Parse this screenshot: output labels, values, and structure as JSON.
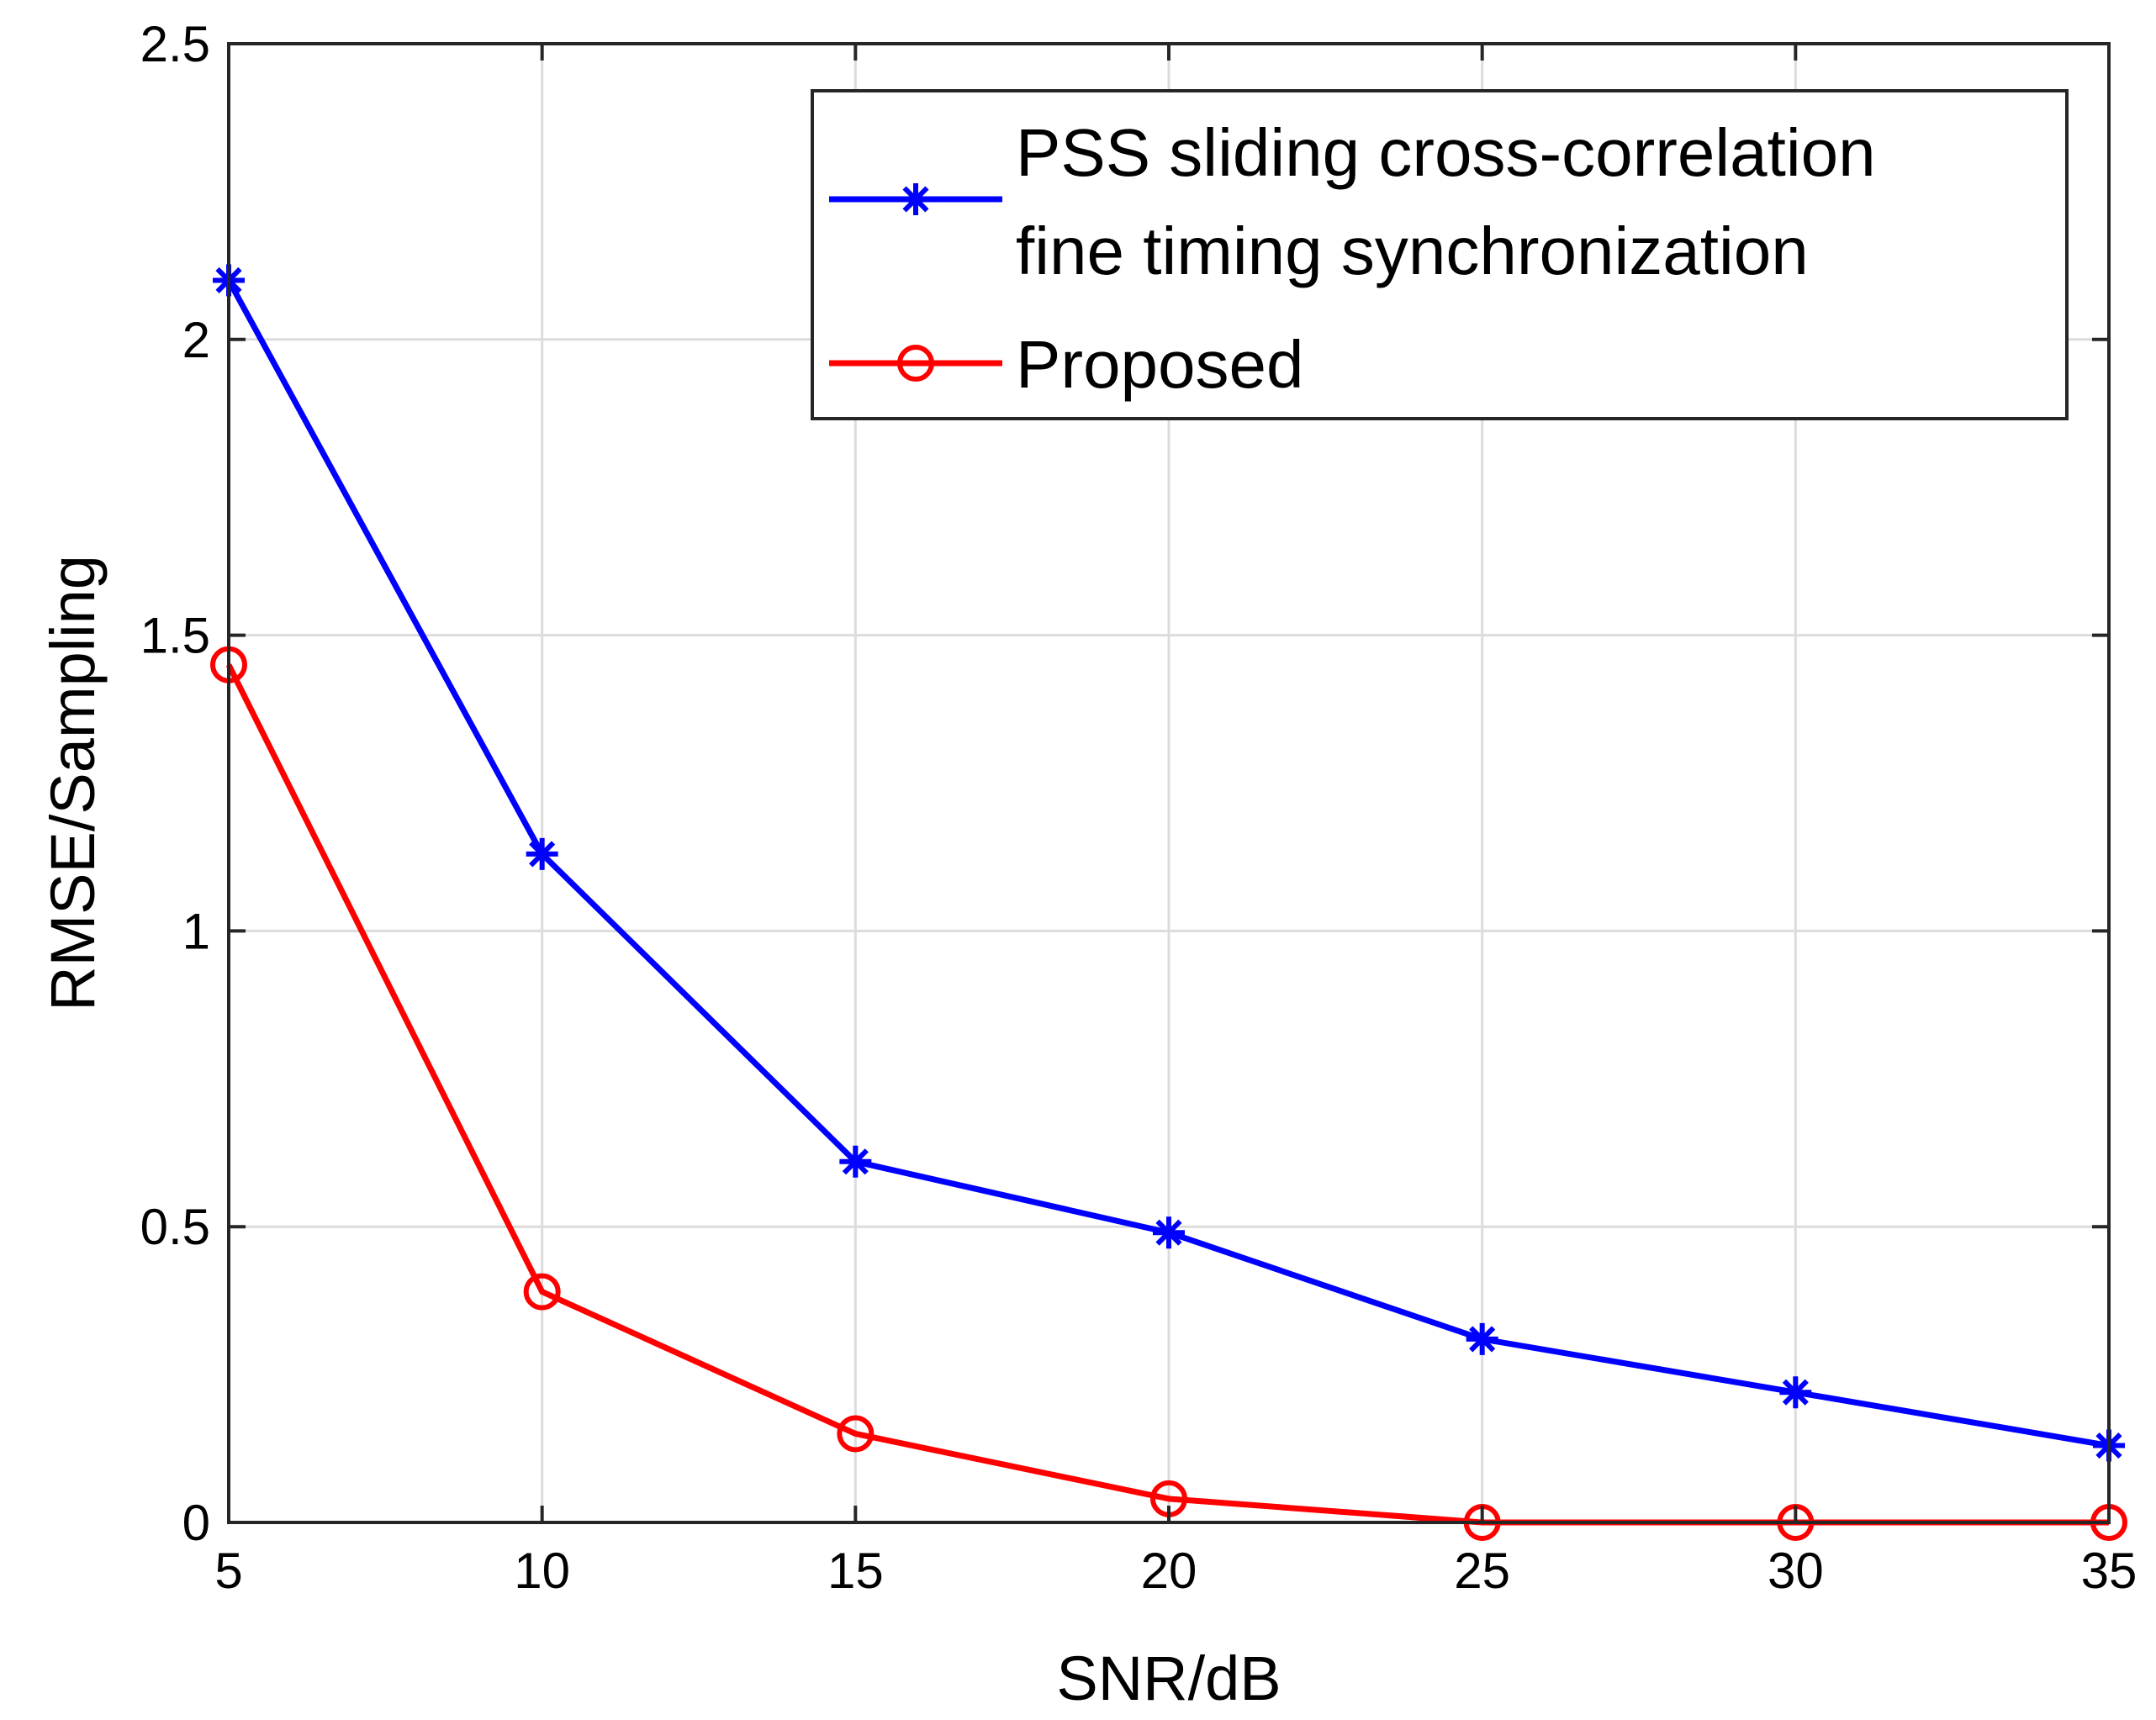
{
  "chart_data": {
    "type": "line",
    "title": "",
    "xlabel": "SNR/dB",
    "ylabel": "RMSE/Sampling",
    "x": [
      5,
      10,
      15,
      20,
      25,
      30,
      35
    ],
    "xlim": [
      5,
      35
    ],
    "ylim": [
      0,
      2.5
    ],
    "xticks": [
      5,
      10,
      15,
      20,
      25,
      30,
      35
    ],
    "xtick_labels": [
      "5",
      "10",
      "15",
      "20",
      "25",
      "30",
      "35"
    ],
    "yticks": [
      0,
      0.5,
      1,
      1.5,
      2,
      2.5
    ],
    "ytick_labels": [
      "0",
      "0.5",
      "1",
      "1.5",
      "2",
      "2.5"
    ],
    "grid": true,
    "legend_position": "top-right",
    "series": [
      {
        "name": "PSS sliding cross-correlation fine timing synchronization",
        "legend_lines": [
          "PSS sliding cross-correlation",
          "fine timing synchronization"
        ],
        "marker": "asterisk",
        "color": "#0000ff",
        "values": [
          2.1,
          1.13,
          0.61,
          0.49,
          0.31,
          0.22,
          0.13
        ]
      },
      {
        "name": "Proposed",
        "legend_lines": [
          "Proposed"
        ],
        "marker": "circle",
        "color": "#ff0000",
        "values": [
          1.45,
          0.39,
          0.15,
          0.04,
          0.0,
          0.0,
          0.0
        ]
      }
    ]
  }
}
